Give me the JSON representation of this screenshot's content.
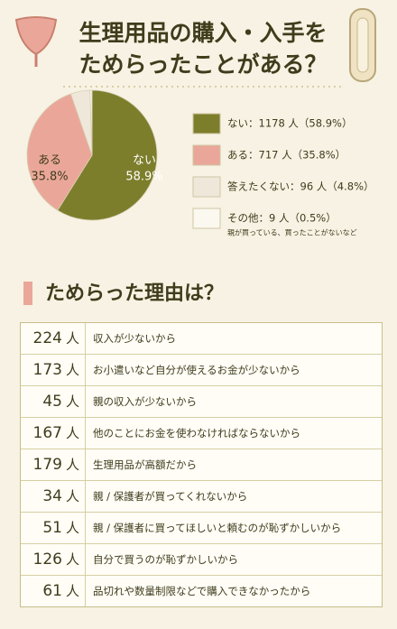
{
  "header": {
    "title_lines": [
      "生理用品の購入・入手を",
      "ためらったことがある？"
    ]
  },
  "chart_data": {
    "type": "pie",
    "categories": [
      "ない",
      "ある",
      "答えたくない",
      "その他"
    ],
    "values": [
      58.9,
      35.8,
      4.8,
      0.5
    ],
    "colors": [
      "#7d7e2c",
      "#eaa799",
      "#efe8da",
      "#fbf8ef"
    ],
    "inside_labels": [
      {
        "name": "ない",
        "value": "58.9%"
      },
      {
        "name": "ある",
        "value": "35.8%"
      }
    ],
    "legend": [
      "ない：1178 人（58.9%）",
      "ある：717 人（35.8%）",
      "答えたくない：96 人（4.8%）",
      "その他：9 人（0.5%）"
    ],
    "legend_note": "親が買っている、買ったことがないなど"
  },
  "table": {
    "title": "ためらった理由は？",
    "rows": [
      {
        "count": 224,
        "unit": "人",
        "reason": "収入が少ないから"
      },
      {
        "count": 173,
        "unit": "人",
        "reason": "お小遣いなど自分が使えるお金が少ないから"
      },
      {
        "count": 45,
        "unit": "人",
        "reason": "親の収入が少ないから"
      },
      {
        "count": 167,
        "unit": "人",
        "reason": "他のことにお金を使わなければならないから"
      },
      {
        "count": 179,
        "unit": "人",
        "reason": "生理用品が高額だから"
      },
      {
        "count": 34,
        "unit": "人",
        "reason": "親 / 保護者が買ってくれないから"
      },
      {
        "count": 51,
        "unit": "人",
        "reason": "親 / 保護者に買ってほしいと頼むのが恥ずかしいから"
      },
      {
        "count": 126,
        "unit": "人",
        "reason": "自分で買うのが恥ずかしいから"
      },
      {
        "count": 61,
        "unit": "人",
        "reason": "品切れや数量制限などで購入できなかったから"
      }
    ]
  }
}
